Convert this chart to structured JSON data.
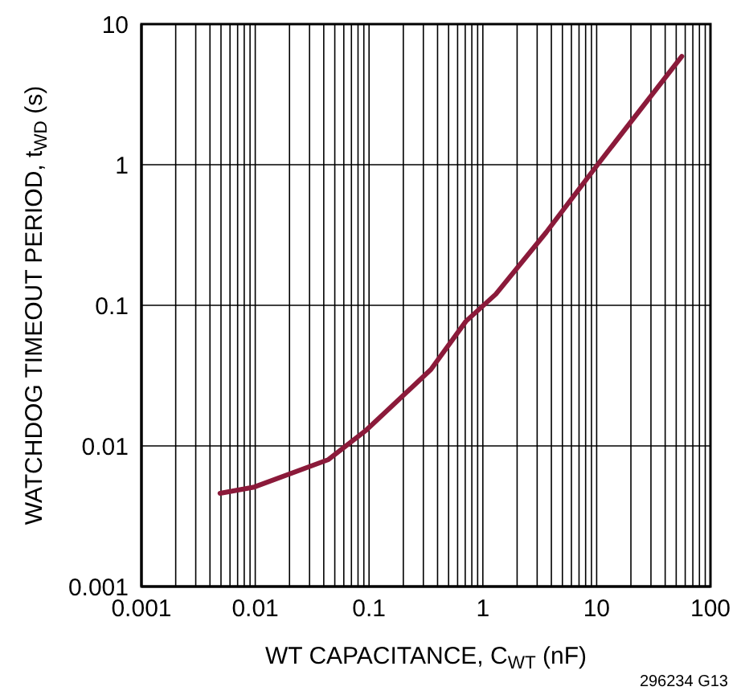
{
  "chart_data": {
    "type": "line",
    "xlabel": "WT CAPACITANCE, C$_{WT}$ (nF)",
    "ylabel": "WATCHDOG TIMEOUT PERIOD, t$_{WD}$ (s)",
    "annotations": [
      "296234 G13"
    ],
    "x": [
      0.0049,
      0.0098,
      0.044,
      0.095,
      0.35,
      0.71,
      1.3,
      3.6,
      9.6,
      56
    ],
    "series": [
      {
        "color": "#8b1a3a",
        "values": [
          0.0046,
          0.0051,
          0.008,
          0.013,
          0.035,
          0.077,
          0.12,
          0.33,
          0.94,
          5.9
        ]
      }
    ],
    "log": "xy",
    "xlim": [
      0.001,
      100
    ],
    "ylim": [
      0.001,
      10
    ],
    "xticks": [
      0.001,
      {
        "value": 0.002,
        "label": null
      },
      {
        "value": 0.003,
        "label": null
      },
      {
        "value": 0.004,
        "label": null
      },
      {
        "value": 0.005,
        "label": null
      },
      {
        "value": 0.006,
        "label": null
      },
      {
        "value": 0.007,
        "label": null
      },
      {
        "value": 0.008,
        "label": null
      },
      {
        "value": 0.009,
        "label": null
      },
      0.01,
      {
        "value": 0.02,
        "label": null
      },
      {
        "value": 0.03,
        "label": null
      },
      {
        "value": 0.04,
        "label": null
      },
      {
        "value": 0.05,
        "label": null
      },
      {
        "value": 0.06,
        "label": null
      },
      {
        "value": 0.07,
        "label": null
      },
      {
        "value": 0.08,
        "label": null
      },
      {
        "value": 0.09,
        "label": null
      },
      0.1,
      {
        "value": 0.2,
        "label": null
      },
      {
        "value": 0.3,
        "label": null
      },
      {
        "value": 0.4,
        "label": null
      },
      {
        "value": 0.5,
        "label": null
      },
      {
        "value": 0.6,
        "label": null
      },
      {
        "value": 0.7,
        "label": null
      },
      {
        "value": 0.8,
        "label": null
      },
      {
        "value": 0.9,
        "label": null
      },
      1,
      {
        "value": 2,
        "label": null
      },
      {
        "value": 3,
        "label": null
      },
      {
        "value": 4,
        "label": null
      },
      {
        "value": 5,
        "label": null
      },
      {
        "value": 6,
        "label": null
      },
      {
        "value": 7,
        "label": null
      },
      {
        "value": 8,
        "label": null
      },
      {
        "value": 9,
        "label": null
      },
      10,
      {
        "value": 20,
        "label": null
      },
      {
        "value": 30,
        "label": null
      },
      {
        "value": 40,
        "label": null
      },
      {
        "value": 50,
        "label": null
      },
      {
        "value": 60,
        "label": null
      },
      {
        "value": 70,
        "label": null
      },
      {
        "value": 80,
        "label": null
      },
      {
        "value": 90,
        "label": null
      },
      100
    ],
    "yticks": [
      0.001,
      0.01,
      0.1,
      1,
      10
    ],
    "grid": true,
    "marker": "none",
    "line_style": "solid"
  }
}
